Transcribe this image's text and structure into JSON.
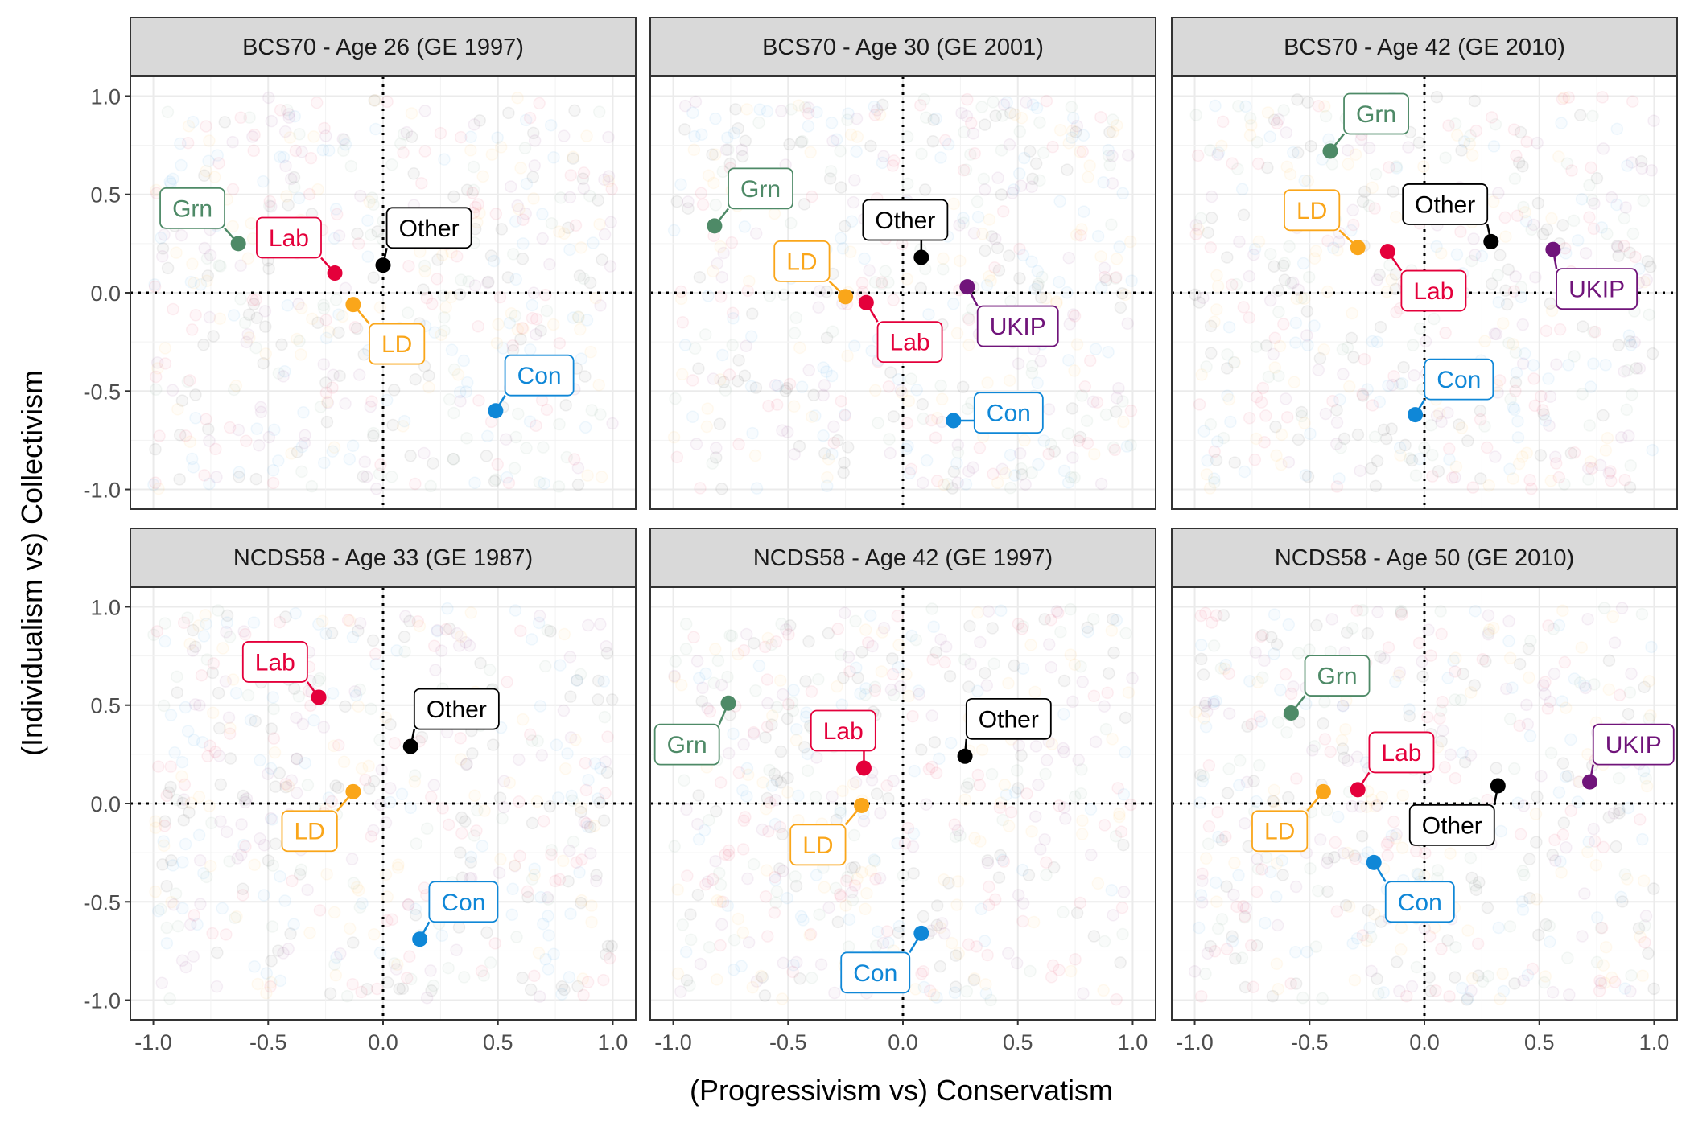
{
  "figure": {
    "xlabel": "(Progressivism vs) Conservatism",
    "ylabel": "(Individualism vs) Collectivism"
  },
  "colors": {
    "Con": "#0f87d7",
    "Lab": "#e4003b",
    "LD": "#faa61a",
    "Grn": "#4e8a67",
    "UKIP": "#70147a",
    "Other": "#000000"
  },
  "chart_data": [
    {
      "type": "scatter",
      "title": "BCS70 - Age 26 (GE 1997)",
      "xlabel": "(Progressivism vs) Conservatism",
      "ylabel": "(Individualism vs) Collectivism",
      "xlim": [
        -1.1,
        1.1
      ],
      "ylim": [
        -1.1,
        1.1
      ],
      "xticks": [
        "-1.0",
        "-0.5",
        "0.0",
        "0.5",
        "1.0"
      ],
      "yticks": [
        "-1.0",
        "-0.5",
        "0.0",
        "0.5",
        "1.0"
      ],
      "reference_lines": {
        "x": 0,
        "y": 0
      },
      "grid": true,
      "points": [
        {
          "party": "Grn",
          "label": "Grn",
          "x": -0.63,
          "y": 0.25,
          "label_x": -0.83,
          "label_y": 0.43
        },
        {
          "party": "Lab",
          "label": "Lab",
          "x": -0.21,
          "y": 0.1,
          "label_x": -0.41,
          "label_y": 0.28
        },
        {
          "party": "Other",
          "label": "Other",
          "x": 0.0,
          "y": 0.14,
          "label_x": 0.2,
          "label_y": 0.33
        },
        {
          "party": "LD",
          "label": "LD",
          "x": -0.13,
          "y": -0.06,
          "label_x": 0.06,
          "label_y": -0.26
        },
        {
          "party": "Con",
          "label": "Con",
          "x": 0.49,
          "y": -0.6,
          "label_x": 0.68,
          "label_y": -0.42
        }
      ]
    },
    {
      "type": "scatter",
      "title": "BCS70 - Age 30 (GE 2001)",
      "xlabel": "(Progressivism vs) Conservatism",
      "ylabel": "(Individualism vs) Collectivism",
      "xlim": [
        -1.1,
        1.1
      ],
      "ylim": [
        -1.1,
        1.1
      ],
      "xticks": [
        "-1.0",
        "-0.5",
        "0.0",
        "0.5",
        "1.0"
      ],
      "yticks": [
        "-1.0",
        "-0.5",
        "0.0",
        "0.5",
        "1.0"
      ],
      "reference_lines": {
        "x": 0,
        "y": 0
      },
      "grid": true,
      "points": [
        {
          "party": "Grn",
          "label": "Grn",
          "x": -0.82,
          "y": 0.34,
          "label_x": -0.62,
          "label_y": 0.53
        },
        {
          "party": "Other",
          "label": "Other",
          "x": 0.08,
          "y": 0.18,
          "label_x": 0.01,
          "label_y": 0.37
        },
        {
          "party": "LD",
          "label": "LD",
          "x": -0.25,
          "y": -0.02,
          "label_x": -0.44,
          "label_y": 0.16
        },
        {
          "party": "Lab",
          "label": "Lab",
          "x": -0.16,
          "y": -0.05,
          "label_x": 0.03,
          "label_y": -0.25
        },
        {
          "party": "UKIP",
          "label": "UKIP",
          "x": 0.28,
          "y": 0.03,
          "label_x": 0.5,
          "label_y": -0.17
        },
        {
          "party": "Con",
          "label": "Con",
          "x": 0.22,
          "y": -0.65,
          "label_x": 0.46,
          "label_y": -0.61
        }
      ]
    },
    {
      "type": "scatter",
      "title": "BCS70 - Age 42 (GE 2010)",
      "xlabel": "(Progressivism vs) Conservatism",
      "ylabel": "(Individualism vs) Collectivism",
      "xlim": [
        -1.1,
        1.1
      ],
      "ylim": [
        -1.1,
        1.1
      ],
      "xticks": [
        "-1.0",
        "-0.5",
        "0.0",
        "0.5",
        "1.0"
      ],
      "yticks": [
        "-1.0",
        "-0.5",
        "0.0",
        "0.5",
        "1.0"
      ],
      "reference_lines": {
        "x": 0,
        "y": 0
      },
      "grid": true,
      "points": [
        {
          "party": "Grn",
          "label": "Grn",
          "x": -0.41,
          "y": 0.72,
          "label_x": -0.21,
          "label_y": 0.91
        },
        {
          "party": "LD",
          "label": "LD",
          "x": -0.29,
          "y": 0.23,
          "label_x": -0.49,
          "label_y": 0.42
        },
        {
          "party": "Lab",
          "label": "Lab",
          "x": -0.16,
          "y": 0.21,
          "label_x": 0.04,
          "label_y": 0.01
        },
        {
          "party": "Other",
          "label": "Other",
          "x": 0.29,
          "y": 0.26,
          "label_x": 0.09,
          "label_y": 0.45
        },
        {
          "party": "UKIP",
          "label": "UKIP",
          "x": 0.56,
          "y": 0.22,
          "label_x": 0.75,
          "label_y": 0.02
        },
        {
          "party": "Con",
          "label": "Con",
          "x": -0.04,
          "y": -0.62,
          "label_x": 0.15,
          "label_y": -0.44
        }
      ]
    },
    {
      "type": "scatter",
      "title": "NCDS58 - Age 33 (GE 1987)",
      "xlabel": "(Progressivism vs) Conservatism",
      "ylabel": "(Individualism vs) Collectivism",
      "xlim": [
        -1.1,
        1.1
      ],
      "ylim": [
        -1.1,
        1.1
      ],
      "xticks": [
        "-1.0",
        "-0.5",
        "0.0",
        "0.5",
        "1.0"
      ],
      "yticks": [
        "-1.0",
        "-0.5",
        "0.0",
        "0.5",
        "1.0"
      ],
      "reference_lines": {
        "x": 0,
        "y": 0
      },
      "grid": true,
      "points": [
        {
          "party": "Lab",
          "label": "Lab",
          "x": -0.28,
          "y": 0.54,
          "label_x": -0.47,
          "label_y": 0.72
        },
        {
          "party": "Other",
          "label": "Other",
          "x": 0.12,
          "y": 0.29,
          "label_x": 0.32,
          "label_y": 0.48
        },
        {
          "party": "LD",
          "label": "LD",
          "x": -0.13,
          "y": 0.06,
          "label_x": -0.32,
          "label_y": -0.14
        },
        {
          "party": "Con",
          "label": "Con",
          "x": 0.16,
          "y": -0.69,
          "label_x": 0.35,
          "label_y": -0.5
        }
      ]
    },
    {
      "type": "scatter",
      "title": "NCDS58 - Age 42 (GE 1997)",
      "xlabel": "(Progressivism vs) Conservatism",
      "ylabel": "(Individualism vs) Collectivism",
      "xlim": [
        -1.1,
        1.1
      ],
      "ylim": [
        -1.1,
        1.1
      ],
      "xticks": [
        "-1.0",
        "-0.5",
        "0.0",
        "0.5",
        "1.0"
      ],
      "yticks": [
        "-1.0",
        "-0.5",
        "0.0",
        "0.5",
        "1.0"
      ],
      "reference_lines": {
        "x": 0,
        "y": 0
      },
      "grid": true,
      "points": [
        {
          "party": "Grn",
          "label": "Grn",
          "x": -0.76,
          "y": 0.51,
          "label_x": -0.94,
          "label_y": 0.3
        },
        {
          "party": "Lab",
          "label": "Lab",
          "x": -0.17,
          "y": 0.18,
          "label_x": -0.26,
          "label_y": 0.37
        },
        {
          "party": "Other",
          "label": "Other",
          "x": 0.27,
          "y": 0.24,
          "label_x": 0.46,
          "label_y": 0.43
        },
        {
          "party": "LD",
          "label": "LD",
          "x": -0.18,
          "y": -0.01,
          "label_x": -0.37,
          "label_y": -0.21
        },
        {
          "party": "Con",
          "label": "Con",
          "x": 0.08,
          "y": -0.66,
          "label_x": -0.12,
          "label_y": -0.86
        }
      ]
    },
    {
      "type": "scatter",
      "title": "NCDS58 - Age 50 (GE 2010)",
      "xlabel": "(Progressivism vs) Conservatism",
      "ylabel": "(Individualism vs) Collectivism",
      "xlim": [
        -1.1,
        1.1
      ],
      "ylim": [
        -1.1,
        1.1
      ],
      "xticks": [
        "-1.0",
        "-0.5",
        "0.0",
        "0.5",
        "1.0"
      ],
      "yticks": [
        "-1.0",
        "-0.5",
        "0.0",
        "0.5",
        "1.0"
      ],
      "reference_lines": {
        "x": 0,
        "y": 0
      },
      "grid": true,
      "points": [
        {
          "party": "Grn",
          "label": "Grn",
          "x": -0.58,
          "y": 0.46,
          "label_x": -0.38,
          "label_y": 0.65
        },
        {
          "party": "Lab",
          "label": "Lab",
          "x": -0.29,
          "y": 0.07,
          "label_x": -0.1,
          "label_y": 0.26
        },
        {
          "party": "UKIP",
          "label": "UKIP",
          "x": 0.72,
          "y": 0.11,
          "label_x": 0.91,
          "label_y": 0.3
        },
        {
          "party": "Other",
          "label": "Other",
          "x": 0.32,
          "y": 0.09,
          "label_x": 0.12,
          "label_y": -0.11
        },
        {
          "party": "LD",
          "label": "LD",
          "x": -0.44,
          "y": 0.06,
          "label_x": -0.63,
          "label_y": -0.14
        },
        {
          "party": "Con",
          "label": "Con",
          "x": -0.22,
          "y": -0.3,
          "label_x": -0.02,
          "label_y": -0.5
        }
      ]
    }
  ]
}
